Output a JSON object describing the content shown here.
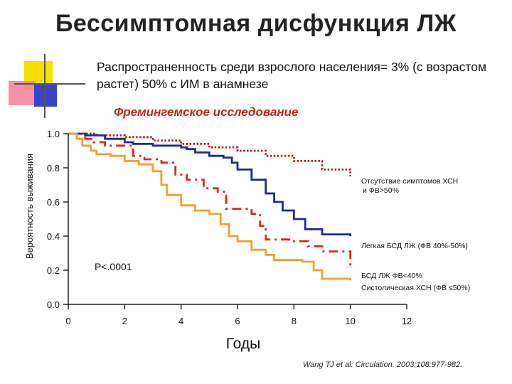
{
  "slide": {
    "title": "Бессимптомная дисфункция ЛЖ",
    "subtitle": "Распространенность среди взрослого населения= 3% (с возрастом растет) 50% с ИМ в анамнезе",
    "study_name": "Фремингемское исследование",
    "citation": "Wang TJ et al. Circulation. 2003;108:977-982."
  },
  "chart_data": {
    "type": "line",
    "title": "",
    "xlabel": "Годы",
    "ylabel": "Вероятность выживания",
    "xlim": [
      0,
      12
    ],
    "ylim": [
      0,
      1
    ],
    "xticks": [
      0,
      2,
      4,
      6,
      8,
      10,
      12
    ],
    "yticks": [
      0.0,
      0.2,
      0.4,
      0.6,
      0.8,
      1.0
    ],
    "ytick_labels": [
      "0.0",
      "0.2",
      "0.4",
      "0.6",
      "0.8",
      "1.0"
    ],
    "annotation": "P<.0001",
    "grid": false,
    "series": [
      {
        "name": "Отсутствие симптомов ХСН и ФВ>50%",
        "color": "#b01c1c",
        "style": "dotted",
        "x": [
          0,
          1,
          2,
          3,
          4,
          5,
          6,
          7,
          8,
          9,
          10
        ],
        "y": [
          1.0,
          0.99,
          0.98,
          0.96,
          0.94,
          0.92,
          0.9,
          0.87,
          0.84,
          0.79,
          0.75
        ]
      },
      {
        "name": "Легкая БСД ЛЖ (ФВ 40%-50%)",
        "color": "#1f2a8a",
        "style": "solid",
        "x": [
          0,
          0.6,
          1.3,
          2.0,
          2.3,
          3.0,
          4.0,
          4.2,
          4.5,
          5.0,
          5.5,
          5.8,
          6.0,
          6.5,
          7.0,
          7.3,
          7.6,
          8.0,
          8.4,
          9.0,
          10.0
        ],
        "y": [
          1.0,
          0.99,
          0.97,
          0.95,
          0.94,
          0.93,
          0.92,
          0.91,
          0.89,
          0.87,
          0.86,
          0.83,
          0.79,
          0.73,
          0.65,
          0.6,
          0.55,
          0.5,
          0.44,
          0.41,
          0.4
        ]
      },
      {
        "name": "БСД ЛЖ ФВ<40%",
        "color": "#d8281e",
        "style": "dashdot",
        "x": [
          0,
          0.6,
          0.9,
          1.3,
          2.3,
          2.7,
          3.3,
          3.8,
          4.2,
          4.8,
          5.3,
          5.6,
          6.5,
          6.8,
          7.0,
          8.0,
          8.5,
          9.0,
          10.0
        ],
        "y": [
          1.0,
          0.97,
          0.95,
          0.93,
          0.87,
          0.85,
          0.83,
          0.76,
          0.73,
          0.68,
          0.66,
          0.56,
          0.53,
          0.46,
          0.38,
          0.37,
          0.34,
          0.31,
          0.21
        ]
      },
      {
        "name": "Систолическая ХСН (ФВ ≤50%)",
        "color": "#f0a030",
        "style": "solid",
        "x": [
          0,
          0.3,
          0.5,
          0.8,
          1.0,
          1.5,
          2.0,
          2.5,
          3.0,
          3.3,
          3.5,
          4.0,
          4.5,
          5.0,
          5.4,
          5.7,
          6.0,
          6.5,
          7.0,
          7.3,
          7.8,
          8.3,
          8.7,
          9.0,
          10.0
        ],
        "y": [
          1.0,
          0.97,
          0.93,
          0.9,
          0.88,
          0.87,
          0.84,
          0.82,
          0.78,
          0.7,
          0.64,
          0.58,
          0.55,
          0.53,
          0.47,
          0.4,
          0.37,
          0.32,
          0.29,
          0.26,
          0.26,
          0.25,
          0.2,
          0.15,
          0.14
        ]
      }
    ]
  }
}
